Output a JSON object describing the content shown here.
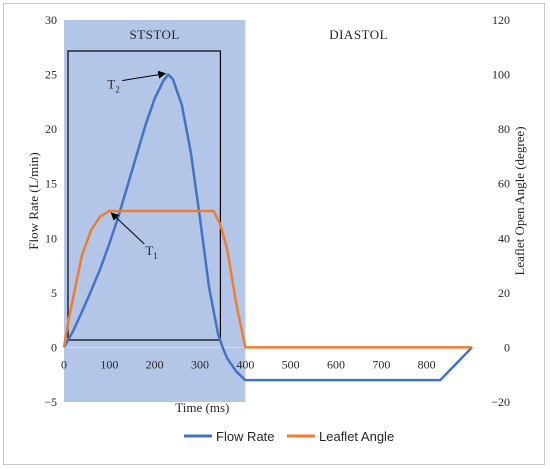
{
  "chart_data": {
    "type": "line",
    "title": "",
    "xlabel": "Time (ms)",
    "ylabel_left": "Flow Rate (L/min)",
    "ylabel_right": "Leaflet Open Angle (degree)",
    "xlim": [
      0,
      900
    ],
    "x_ticks": [
      0,
      100,
      200,
      300,
      400,
      500,
      600,
      700,
      800
    ],
    "ylim_left": [
      -5,
      30
    ],
    "y_ticks_left": [
      -5,
      0,
      5,
      10,
      15,
      20,
      25,
      30
    ],
    "ylim_right": [
      -20,
      120
    ],
    "y_ticks_right": [
      -20,
      0,
      20,
      40,
      60,
      80,
      100,
      120
    ],
    "grid": false,
    "legend_position": "bottom",
    "colors": {
      "flow": "#4472C4",
      "angle": "#ED7D31",
      "systole_fill": "#B4C6E7"
    },
    "phases": [
      {
        "label": "STSTOL",
        "start": 0,
        "end": 400
      },
      {
        "label": "DIASTOL",
        "start": 400,
        "end": 900
      }
    ],
    "series": [
      {
        "name": "Flow Rate",
        "axis": "left",
        "x": [
          0,
          20,
          40,
          60,
          80,
          100,
          120,
          140,
          160,
          180,
          200,
          220,
          230,
          240,
          260,
          280,
          300,
          320,
          340,
          350,
          360,
          380,
          400,
          830,
          900
        ],
        "y": [
          0,
          1.5,
          3.3,
          5.2,
          7.2,
          9.5,
          12,
          14.8,
          17.6,
          20.4,
          22.8,
          24.5,
          25,
          24.6,
          22.2,
          17.8,
          11.8,
          5.5,
          1.2,
          0,
          -1,
          -2.2,
          -3,
          -3,
          0
        ]
      },
      {
        "name": "Leaflet Angle",
        "axis": "right",
        "x": [
          0,
          10,
          20,
          40,
          60,
          80,
          100,
          120,
          200,
          300,
          330,
          345,
          360,
          370,
          380,
          400,
          900
        ],
        "y": [
          0,
          10,
          18,
          34,
          43,
          48,
          50,
          50,
          50,
          50,
          50,
          45,
          36,
          26,
          16,
          0,
          0
        ]
      }
    ],
    "annotations": [
      {
        "label": "T",
        "subscript": "2",
        "x": 230,
        "y": 25
      },
      {
        "label": "T",
        "subscript": "1",
        "x": 100,
        "y": 12.5
      }
    ]
  }
}
